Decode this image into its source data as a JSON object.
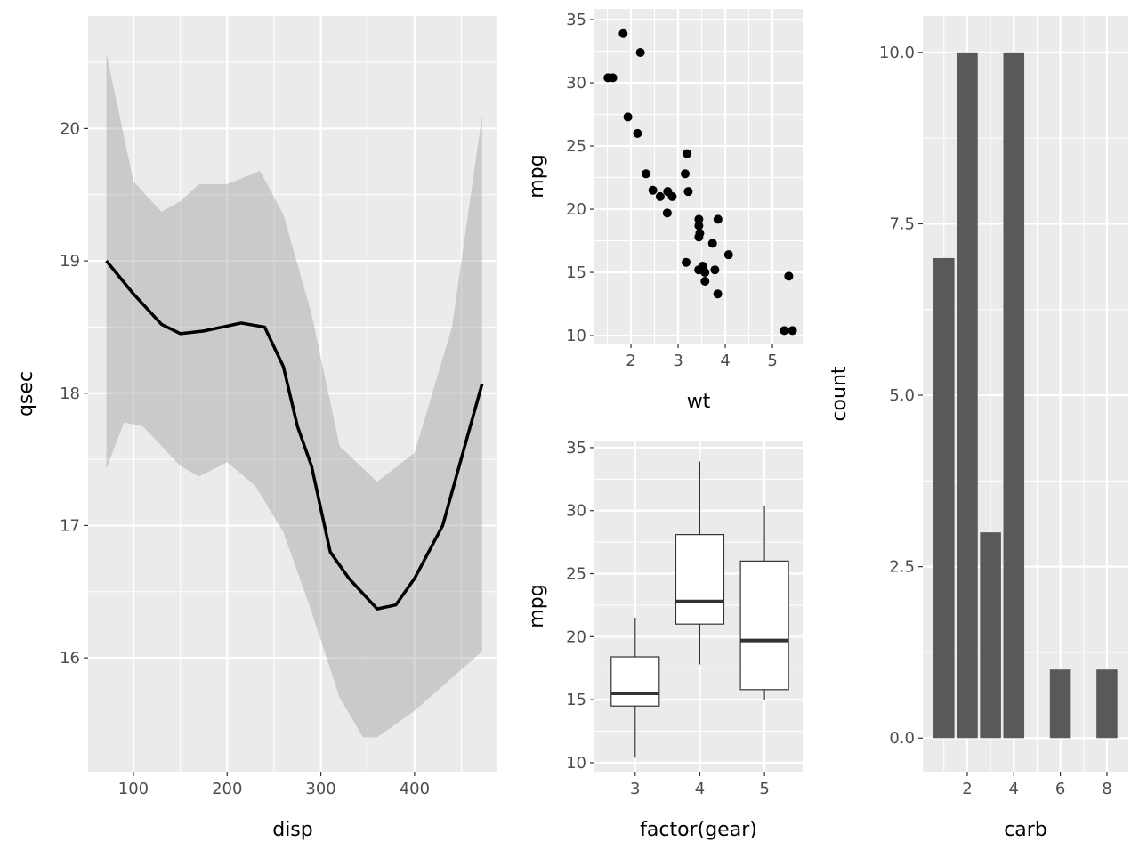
{
  "chart_data": [
    {
      "type": "line",
      "id": "smooth",
      "xlabel": "disp",
      "ylabel": "qsec",
      "xlim": [
        51.6,
        488.4
      ],
      "ylim": [
        15.14,
        20.85
      ],
      "xticks": [
        100,
        200,
        300,
        400
      ],
      "yticks": [
        16,
        17,
        18,
        19,
        20
      ],
      "xminor": [
        50,
        150,
        250,
        350,
        450
      ],
      "yminor": [
        15.5,
        16.5,
        17.5,
        18.5,
        19.5,
        20.5
      ],
      "x": [
        71.1,
        100,
        130,
        150,
        175,
        215,
        240,
        260,
        275,
        290,
        310,
        330,
        360,
        380,
        400,
        430,
        472
      ],
      "y": [
        19.0,
        18.75,
        18.52,
        18.45,
        18.47,
        18.53,
        18.5,
        18.2,
        17.75,
        17.45,
        16.8,
        16.6,
        16.37,
        16.4,
        16.6,
        17.0,
        18.07
      ],
      "ribbon_upper": {
        "x": [
          71.1,
          100,
          130,
          150,
          170,
          200,
          235,
          260,
          290,
          320,
          360,
          400,
          440,
          472
        ],
        "y": [
          20.57,
          19.6,
          19.37,
          19.45,
          19.58,
          19.58,
          19.68,
          19.35,
          18.6,
          17.6,
          17.33,
          17.55,
          18.5,
          20.1
        ]
      },
      "ribbon_lower": {
        "x": [
          71.1,
          90,
          110,
          150,
          170,
          200,
          230,
          260,
          290,
          320,
          345,
          360,
          400,
          472
        ],
        "y": [
          17.43,
          17.78,
          17.75,
          17.45,
          17.37,
          17.48,
          17.3,
          16.95,
          16.35,
          15.7,
          15.4,
          15.4,
          15.6,
          16.05
        ]
      }
    },
    {
      "type": "scatter",
      "id": "scatter",
      "xlabel": "wt",
      "ylabel": "mpg",
      "xlim": [
        1.226,
        5.64
      ],
      "ylim": [
        9.37,
        35.85
      ],
      "xticks": [
        2,
        3,
        4,
        5
      ],
      "yticks": [
        10,
        15,
        20,
        25,
        30,
        35
      ],
      "xminor": [
        1.5,
        2.5,
        3.5,
        4.5,
        5.5
      ],
      "yminor": [
        12.5,
        17.5,
        22.5,
        27.5,
        32.5
      ],
      "points": [
        [
          2.62,
          21
        ],
        [
          2.875,
          21
        ],
        [
          2.32,
          22.8
        ],
        [
          3.215,
          21.4
        ],
        [
          3.44,
          18.7
        ],
        [
          3.46,
          18.1
        ],
        [
          3.57,
          14.3
        ],
        [
          3.19,
          24.4
        ],
        [
          3.15,
          22.8
        ],
        [
          3.44,
          19.2
        ],
        [
          3.44,
          17.8
        ],
        [
          4.07,
          16.4
        ],
        [
          3.73,
          17.3
        ],
        [
          3.78,
          15.2
        ],
        [
          5.25,
          10.4
        ],
        [
          5.424,
          10.4
        ],
        [
          5.345,
          14.7
        ],
        [
          2.2,
          32.4
        ],
        [
          1.615,
          30.4
        ],
        [
          1.835,
          33.9
        ],
        [
          2.465,
          21.5
        ],
        [
          3.52,
          15.5
        ],
        [
          3.435,
          15.2
        ],
        [
          3.84,
          13.3
        ],
        [
          3.845,
          19.2
        ],
        [
          1.935,
          27.3
        ],
        [
          2.14,
          26
        ],
        [
          1.513,
          30.4
        ],
        [
          3.17,
          15.8
        ],
        [
          2.77,
          19.7
        ],
        [
          3.57,
          15
        ],
        [
          2.78,
          21.4
        ]
      ]
    },
    {
      "type": "box",
      "id": "box",
      "xlabel": "factor(gear)",
      "ylabel": "mpg",
      "xlim": [
        2.37,
        5.59
      ],
      "ylim": [
        9.29,
        35.56
      ],
      "categories": [
        "3",
        "4",
        "5"
      ],
      "yticks": [
        10,
        15,
        20,
        25,
        30,
        35
      ],
      "yminor": [
        12.5,
        17.5,
        22.5,
        27.5,
        32.5
      ],
      "boxes": [
        {
          "min": 10.4,
          "q1": 14.5,
          "median": 15.5,
          "q3": 18.4,
          "max": 21.5
        },
        {
          "min": 17.8,
          "q1": 21,
          "median": 22.8,
          "q3": 28.1,
          "max": 33.9
        },
        {
          "min": 15,
          "q1": 15.8,
          "median": 19.7,
          "q3": 26,
          "max": 30.4
        }
      ]
    },
    {
      "type": "bar",
      "id": "bar",
      "xlabel": "carb",
      "ylabel": "count",
      "xlim": [
        0.09,
        8.92
      ],
      "ylim": [
        -0.49,
        10.53
      ],
      "xticks": [
        2,
        4,
        6,
        8
      ],
      "xminor": [
        1,
        3,
        5,
        7
      ],
      "yticks": [
        0,
        2.5,
        5,
        7.5,
        10
      ],
      "ytick_labels": [
        "0.0",
        "2.5",
        "5.0",
        "7.5",
        "10.0"
      ],
      "yminor": [
        1.25,
        3.75,
        6.25,
        8.75
      ],
      "categories": [
        1,
        2,
        3,
        4,
        6,
        8
      ],
      "values": [
        7,
        10,
        3,
        10,
        1,
        1
      ]
    }
  ]
}
